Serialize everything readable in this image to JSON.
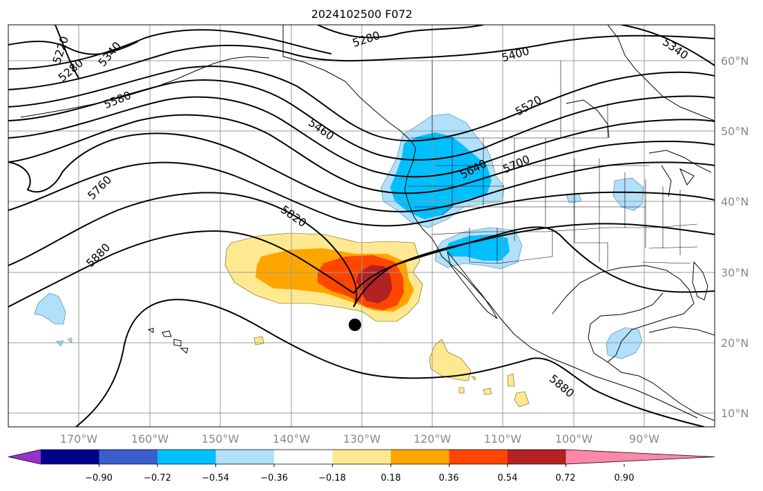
{
  "title": "2024102500 F072",
  "lon_labels": [
    "170°W",
    "160°W",
    "150°W",
    "140°W",
    "130°W",
    "120°W",
    "110°W",
    "100°W",
    "90°W"
  ],
  "lat_labels": [
    "60°N",
    "50°N",
    "40°N",
    "30°N",
    "20°N",
    "10°N"
  ],
  "contour_labels": [
    "5280",
    "5400",
    "5340",
    "5220",
    "5340",
    "5280",
    "5580",
    "5460",
    "5520",
    "5640",
    "5700",
    "5760",
    "5820",
    "5880",
    "5880"
  ],
  "colorbar": {
    "ticks": [
      "−0.90",
      "−0.72",
      "−0.54",
      "−0.36",
      "−0.18",
      "0.18",
      "0.36",
      "0.54",
      "0.72",
      "0.90"
    ],
    "colors": [
      "#9932cc",
      "#00008b",
      "#3a5fcd",
      "#00bfff",
      "#b0e0fa",
      "#ffffff",
      "#ffe990",
      "#ffa500",
      "#ff4500",
      "#b22222",
      "#ff88aa"
    ]
  },
  "marker": "storm-position-dot"
}
